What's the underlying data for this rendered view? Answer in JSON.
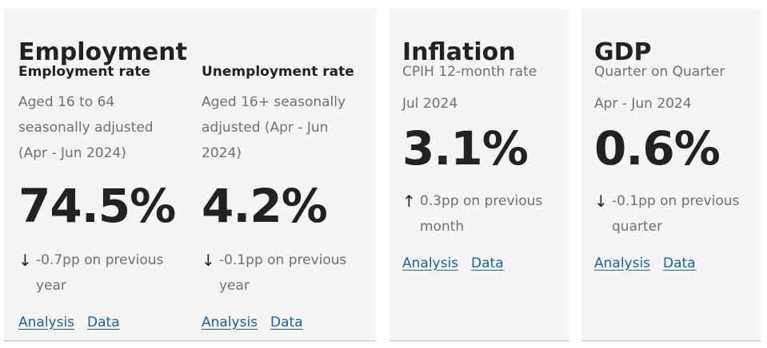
{
  "employment": {
    "title": "Employment",
    "employment_rate": {
      "title": "Employment rate",
      "description": "Aged 16 to 64 seasonally adjusted (Apr - Jun 2024)",
      "value": "74.5%",
      "change_direction": "down",
      "change_arrow": "↓",
      "change_text": "-0.7pp on previous year",
      "analysis_label": "Analysis",
      "data_label": "Data"
    },
    "unemployment_rate": {
      "title": "Unemployment rate",
      "description": "Aged 16+ seasonally adjusted (Apr - Jun 2024)",
      "value": "4.2%",
      "change_direction": "down",
      "change_arrow": "↓",
      "change_text": "-0.1pp on previous year",
      "analysis_label": "Analysis",
      "data_label": "Data"
    }
  },
  "inflation": {
    "title": "Inflation",
    "measure": "CPIH 12-month rate",
    "period": "Jul 2024",
    "value": "3.1%",
    "change_direction": "up",
    "change_arrow": "↑",
    "change_text": "0.3pp on previous month",
    "analysis_label": "Analysis",
    "data_label": "Data"
  },
  "gdp": {
    "title": "GDP",
    "measure": "Quarter on Quarter",
    "period": "Apr - Jun 2024",
    "value": "0.6%",
    "change_direction": "down",
    "change_arrow": "↓",
    "change_text": "-0.1pp on previous quarter",
    "analysis_label": "Analysis",
    "data_label": "Data"
  },
  "colors": {
    "card_background": "#f5f5f6",
    "text_primary": "#222222",
    "text_secondary": "#707071",
    "link": "#206095"
  }
}
